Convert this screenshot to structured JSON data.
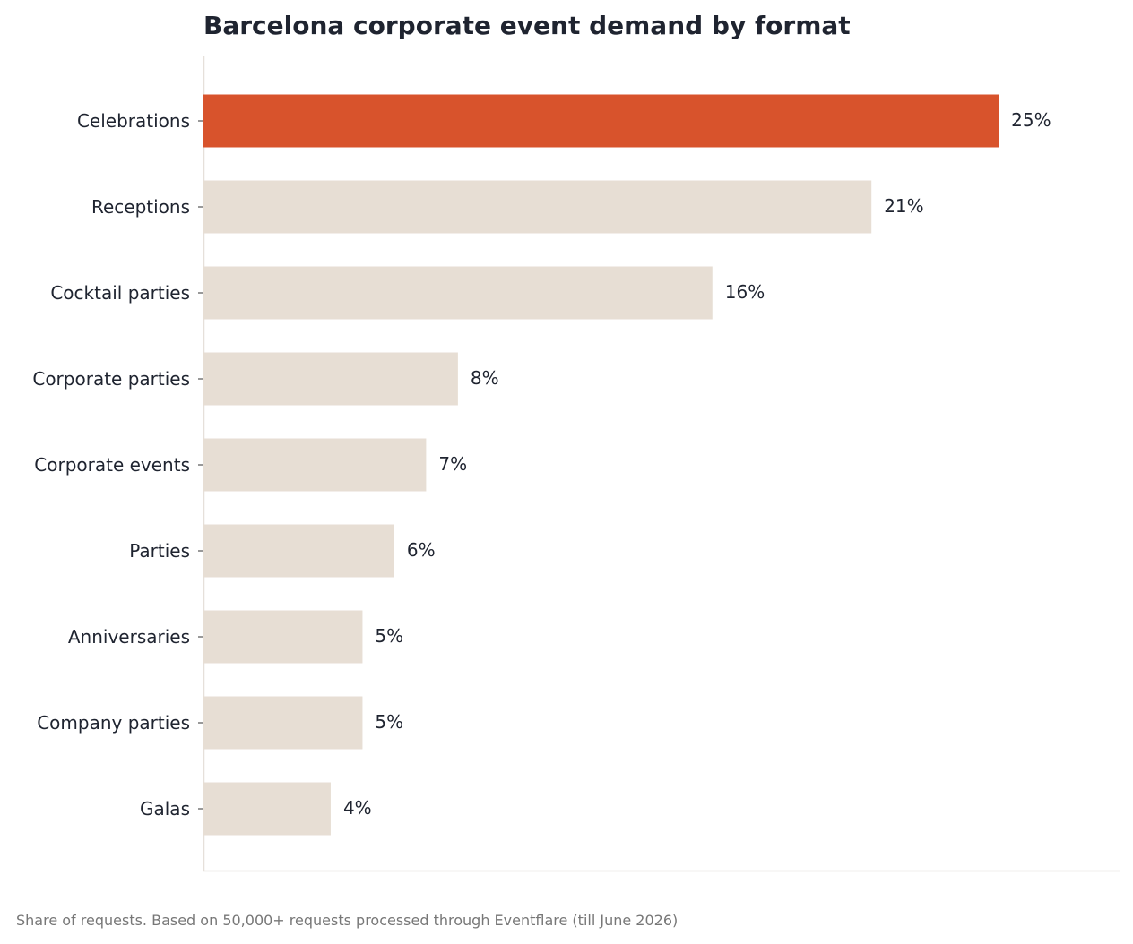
{
  "chart_data": {
    "type": "bar",
    "orientation": "horizontal",
    "title": "Barcelona corporate event demand by format",
    "categories": [
      "Celebrations",
      "Receptions",
      "Cocktail parties",
      "Corporate parties",
      "Corporate events",
      "Parties",
      "Anniversaries",
      "Company parties",
      "Galas"
    ],
    "values": [
      25,
      21,
      16,
      8,
      7,
      6,
      5,
      5,
      4
    ],
    "value_labels": [
      "25%",
      "21%",
      "16%",
      "8%",
      "7%",
      "6%",
      "5%",
      "5%",
      "4%"
    ],
    "unit": "%",
    "xlim": [
      0,
      28.8
    ],
    "grid": false,
    "highlight_index": 0,
    "colors": {
      "highlight": "#d8532c",
      "bar": "#e7ded4",
      "axis": "#e6e0da",
      "text": "#1f2430"
    },
    "footnote": "Share of requests. Based on 50,000+ requests processed through Eventflare (till June 2026)"
  }
}
